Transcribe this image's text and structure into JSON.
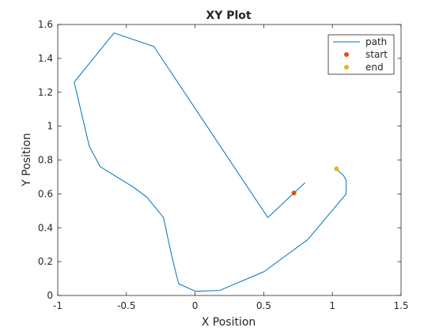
{
  "chart_data": {
    "type": "line",
    "title": "XY Plot",
    "xlabel": "X Position",
    "ylabel": "Y Position",
    "xlim": [
      -1,
      1.5
    ],
    "ylim": [
      0,
      1.6
    ],
    "xticks": [
      -1,
      -0.5,
      0,
      0.5,
      1,
      1.5
    ],
    "xtick_labels": [
      "-1",
      "-0.5",
      "0",
      "0.5",
      "1",
      "1.5"
    ],
    "yticks": [
      0,
      0.2,
      0.4,
      0.6,
      0.8,
      1,
      1.2,
      1.4,
      1.6
    ],
    "ytick_labels": [
      "0",
      "0.2",
      "0.4",
      "0.6",
      "0.8",
      "1",
      "1.2",
      "1.4",
      "1.6"
    ],
    "grid": false,
    "legend_position": "top-right",
    "legend": [
      "path",
      "start",
      "end"
    ],
    "series": [
      {
        "name": "path",
        "style": "line",
        "color": "#0072BD",
        "points": [
          [
            0.8,
            0.665
          ],
          [
            0.7,
            0.59
          ],
          [
            0.53,
            0.46
          ],
          [
            -0.3,
            1.47
          ],
          [
            -0.59,
            1.55
          ],
          [
            -0.88,
            1.26
          ],
          [
            -0.77,
            0.88
          ],
          [
            -0.69,
            0.76
          ],
          [
            -0.45,
            0.64
          ],
          [
            -0.4,
            0.61
          ],
          [
            -0.35,
            0.58
          ],
          [
            -0.3,
            0.53
          ],
          [
            -0.23,
            0.46
          ],
          [
            -0.18,
            0.27
          ],
          [
            -0.16,
            0.2
          ],
          [
            -0.12,
            0.07
          ],
          [
            0.0,
            0.025
          ],
          [
            0.18,
            0.03
          ],
          [
            0.5,
            0.14
          ],
          [
            0.82,
            0.33
          ],
          [
            1.1,
            0.6
          ],
          [
            1.1,
            0.68
          ],
          [
            1.08,
            0.71
          ],
          [
            1.05,
            0.73
          ],
          [
            1.03,
            0.75
          ]
        ]
      },
      {
        "name": "start",
        "style": "marker",
        "color": "#D95319",
        "points": [
          [
            0.72,
            0.605
          ]
        ]
      },
      {
        "name": "end",
        "style": "marker",
        "color": "#EDB120",
        "points": [
          [
            1.03,
            0.748
          ]
        ]
      }
    ]
  }
}
